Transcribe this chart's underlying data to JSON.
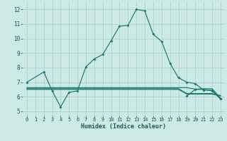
{
  "xlabel": "Humidex (Indice chaleur)",
  "background_color": "#cce9e6",
  "grid_color": "#a8d0cc",
  "line_color": "#1a7a6e",
  "xlim": [
    -0.5,
    23.5
  ],
  "ylim": [
    4.7,
    12.55
  ],
  "xticks": [
    0,
    1,
    2,
    3,
    4,
    5,
    6,
    7,
    8,
    9,
    10,
    11,
    12,
    13,
    14,
    15,
    16,
    17,
    18,
    19,
    20,
    21,
    22,
    23
  ],
  "yticks": [
    5,
    6,
    7,
    8,
    9,
    10,
    11,
    12
  ],
  "main_x": [
    0,
    2,
    3,
    4,
    5,
    6,
    7,
    8,
    9,
    10,
    11,
    12,
    13,
    14,
    15,
    16,
    17,
    18,
    19,
    20,
    21,
    22,
    23
  ],
  "main_y": [
    7.0,
    7.7,
    6.4,
    5.3,
    6.3,
    6.4,
    8.05,
    8.6,
    8.9,
    9.85,
    10.85,
    10.9,
    12.0,
    11.9,
    10.3,
    9.8,
    8.3,
    7.3,
    7.0,
    6.9,
    6.45,
    6.45,
    5.85
  ],
  "flat1_x": [
    0,
    2,
    3,
    4,
    5,
    6,
    7,
    8,
    9,
    10,
    11,
    12,
    13,
    14,
    15,
    16,
    17,
    18,
    19,
    20,
    21,
    22,
    23
  ],
  "flat1_y": [
    6.5,
    6.5,
    6.5,
    6.5,
    6.5,
    6.5,
    6.5,
    6.5,
    6.5,
    6.5,
    6.5,
    6.5,
    6.5,
    6.5,
    6.5,
    6.5,
    6.5,
    6.5,
    6.18,
    6.18,
    6.18,
    6.18,
    6.05
  ],
  "flat2_x": [
    0,
    2,
    3,
    4,
    5,
    6,
    7,
    8,
    9,
    10,
    11,
    12,
    13,
    14,
    15,
    16,
    17,
    18,
    19,
    20,
    21,
    22,
    23
  ],
  "flat2_y": [
    6.55,
    6.55,
    6.55,
    6.55,
    6.55,
    6.55,
    6.55,
    6.55,
    6.55,
    6.55,
    6.55,
    6.55,
    6.55,
    6.55,
    6.55,
    6.55,
    6.55,
    6.55,
    6.22,
    6.22,
    6.22,
    6.22,
    6.08
  ],
  "flat3_x": [
    0,
    2,
    3,
    4,
    5,
    6,
    7,
    8,
    9,
    10,
    11,
    12,
    13,
    14,
    15,
    16,
    17,
    18,
    19,
    20,
    21,
    22,
    23
  ],
  "flat3_y": [
    6.62,
    6.62,
    6.62,
    6.62,
    6.62,
    6.62,
    6.62,
    6.62,
    6.62,
    6.62,
    6.62,
    6.62,
    6.62,
    6.62,
    6.62,
    6.62,
    6.62,
    6.62,
    6.62,
    6.52,
    6.55,
    6.55,
    5.9
  ],
  "extra_x": [
    19,
    20,
    21,
    22,
    23
  ],
  "extra_y": [
    6.05,
    6.5,
    6.5,
    6.4,
    5.85
  ]
}
